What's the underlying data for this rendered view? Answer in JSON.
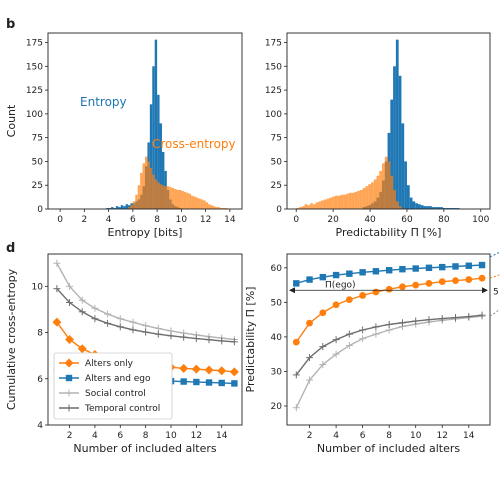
{
  "panels": {
    "b": "b",
    "d": "d"
  },
  "chart_data": [
    {
      "type": "bar",
      "id": "entropy-hist",
      "xlabel": "Entropy [bits]",
      "ylabel": "Count",
      "xlim": [
        -1,
        15
      ],
      "ylim": [
        0,
        185
      ],
      "xticks": [
        0,
        2,
        4,
        6,
        8,
        10,
        12,
        14
      ],
      "yticks": [
        0,
        25,
        50,
        75,
        100,
        125,
        150,
        175
      ],
      "bin_width": 0.2,
      "series": [
        {
          "name": "Entropy",
          "color": "#1f77b4",
          "x_start": 3.8,
          "values": [
            1,
            1,
            2,
            1,
            3,
            2,
            4,
            3,
            5,
            4,
            6,
            6,
            8,
            10,
            15,
            24,
            45,
            70,
            110,
            150,
            178,
            120,
            90,
            60,
            40,
            20,
            10,
            5,
            3,
            2,
            1
          ]
        },
        {
          "name": "Cross-entropy",
          "color": "#ff7f0e",
          "x_start": 5.6,
          "values": [
            2,
            4,
            8,
            15,
            25,
            38,
            48,
            55,
            50,
            43,
            36,
            31,
            28,
            26,
            25,
            24,
            24,
            23,
            22,
            21,
            20,
            20,
            19,
            18,
            17,
            16,
            14,
            13,
            12,
            11,
            10,
            9,
            7,
            5,
            4,
            3,
            2,
            2,
            1,
            1,
            1
          ]
        }
      ],
      "labels": {
        "entropy": "Entropy",
        "cross": "Cross-entropy"
      }
    },
    {
      "type": "bar",
      "id": "predictability-hist",
      "xlabel": "Predictability Π [%]",
      "xlim": [
        -5,
        105
      ],
      "ylim": [
        0,
        185
      ],
      "xticks": [
        0,
        20,
        40,
        60,
        80,
        100
      ],
      "yticks": [
        0,
        25,
        50,
        75,
        100,
        125,
        150,
        175
      ],
      "bin_width": 1.5,
      "series": [
        {
          "name": "Entropy",
          "color": "#1f77b4",
          "x_start": 36,
          "values": [
            2,
            3,
            4,
            6,
            8,
            12,
            18,
            30,
            50,
            80,
            115,
            150,
            178,
            140,
            90,
            50,
            25,
            12,
            8,
            6,
            5,
            4,
            3,
            3,
            3,
            2,
            2,
            2,
            2,
            1,
            1,
            1,
            1,
            1,
            1
          ]
        },
        {
          "name": "Cross-entropy",
          "color": "#ff7f0e",
          "x_start": 0,
          "values": [
            1,
            2,
            3,
            5,
            4,
            6,
            5,
            7,
            8,
            9,
            10,
            11,
            12,
            13,
            14,
            14,
            15,
            15,
            16,
            17,
            17,
            18,
            19,
            20,
            22,
            24,
            26,
            28,
            31,
            35,
            40,
            48,
            55,
            50,
            35,
            20,
            8,
            3
          ]
        }
      ]
    },
    {
      "type": "line",
      "id": "cross-entropy-lines",
      "xlabel": "Number of included alters",
      "ylabel": "Cumulative cross-entropy",
      "xlim": [
        0.3,
        15.6
      ],
      "ylim": [
        4,
        11.4
      ],
      "xticks": [
        2,
        4,
        6,
        8,
        10,
        12,
        14
      ],
      "yticks": [
        4,
        6,
        8,
        10
      ],
      "x": [
        1,
        2,
        3,
        4,
        5,
        6,
        7,
        8,
        9,
        10,
        11,
        12,
        13,
        14,
        15
      ],
      "series": [
        {
          "name": "Alters only",
          "color": "#ff7f0e",
          "marker": "diamond",
          "values": [
            8.45,
            7.7,
            7.3,
            7.05,
            6.9,
            6.8,
            6.7,
            6.63,
            6.56,
            6.5,
            6.45,
            6.42,
            6.38,
            6.35,
            6.3
          ]
        },
        {
          "name": "Alters and ego",
          "color": "#1f77b4",
          "marker": "square",
          "values": [
            6.4,
            6.25,
            6.15,
            6.1,
            6.05,
            6.0,
            5.98,
            5.95,
            5.92,
            5.9,
            5.88,
            5.86,
            5.84,
            5.82,
            5.8
          ]
        },
        {
          "name": "Social control",
          "color": "#b3b3b3",
          "marker": "plus",
          "values": [
            11.0,
            10.0,
            9.4,
            9.05,
            8.8,
            8.6,
            8.45,
            8.3,
            8.18,
            8.07,
            7.98,
            7.9,
            7.82,
            7.76,
            7.7
          ]
        },
        {
          "name": "Temporal control",
          "color": "#6e6e6e",
          "marker": "plus",
          "values": [
            9.9,
            9.3,
            8.9,
            8.6,
            8.4,
            8.25,
            8.12,
            8.02,
            7.93,
            7.86,
            7.8,
            7.74,
            7.69,
            7.64,
            7.6
          ]
        }
      ],
      "legend": "lower-left"
    },
    {
      "type": "line",
      "id": "predictability-lines",
      "xlabel": "Number of included alters",
      "ylabel": "Predictability Π [%]",
      "xlim": [
        0.3,
        15.6
      ],
      "ylim": [
        14.5,
        64
      ],
      "xticks": [
        2,
        4,
        6,
        8,
        10,
        12,
        14
      ],
      "yticks": [
        20,
        30,
        40,
        50,
        60
      ],
      "x": [
        1,
        2,
        3,
        4,
        5,
        6,
        7,
        8,
        9,
        10,
        11,
        12,
        13,
        14,
        15
      ],
      "series": [
        {
          "name": "Alters only",
          "color": "#ff7f0e",
          "marker": "circle",
          "values": [
            38.5,
            44.0,
            47.0,
            49.3,
            50.8,
            52.0,
            53.0,
            53.8,
            54.5,
            55.0,
            55.5,
            56.0,
            56.3,
            56.6,
            57.0
          ]
        },
        {
          "name": "Alters and ego",
          "color": "#1f77b4",
          "marker": "square",
          "values": [
            55.5,
            56.6,
            57.3,
            57.9,
            58.3,
            58.7,
            59.0,
            59.3,
            59.6,
            59.8,
            60.0,
            60.2,
            60.4,
            60.6,
            60.8
          ]
        },
        {
          "name": "Social control",
          "color": "#b3b3b3",
          "marker": "plus",
          "values": [
            19.5,
            27.5,
            32.0,
            35.0,
            37.5,
            39.5,
            40.8,
            42.0,
            43.0,
            43.7,
            44.3,
            44.8,
            45.2,
            45.6,
            46.0
          ]
        },
        {
          "name": "Temporal control",
          "color": "#6e6e6e",
          "marker": "plus",
          "values": [
            29.0,
            34.0,
            37.2,
            39.2,
            40.8,
            42.0,
            42.9,
            43.6,
            44.1,
            44.6,
            45.0,
            45.3,
            45.6,
            45.9,
            46.3
          ]
        }
      ],
      "annotation": {
        "text": "Π(ego)",
        "value": 53.5,
        "right_label": "5"
      }
    }
  ]
}
